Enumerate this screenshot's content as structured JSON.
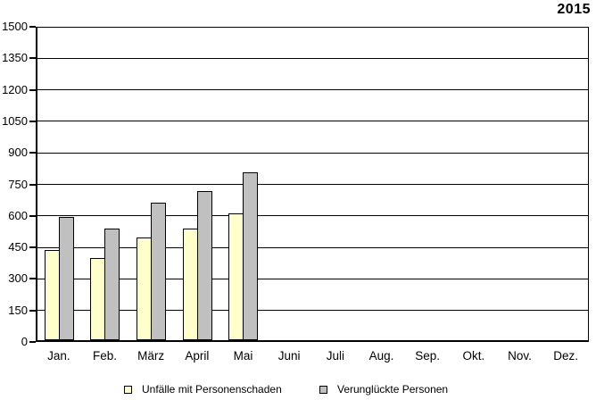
{
  "chart_data": {
    "type": "bar",
    "title": "2015",
    "categories": [
      "Jan.",
      "Feb.",
      "März",
      "April",
      "Mai",
      "Juni",
      "Juli",
      "Aug.",
      "Sep.",
      "Okt.",
      "Nov.",
      "Dez."
    ],
    "series": [
      {
        "name": "Unfälle mit Personenschaden",
        "color": "#FFFFCC",
        "values": [
          430,
          390,
          490,
          530,
          605,
          null,
          null,
          null,
          null,
          null,
          null,
          null
        ]
      },
      {
        "name": "Verunglückte Personen",
        "color": "#C0C0C0",
        "values": [
          585,
          530,
          655,
          710,
          800,
          null,
          null,
          null,
          null,
          null,
          null,
          null
        ]
      }
    ],
    "ylim": [
      0,
      1500
    ],
    "ytick_step": 150,
    "yticks": [
      0,
      150,
      300,
      450,
      600,
      750,
      900,
      1050,
      1200,
      1350,
      1500
    ],
    "xlabel": "",
    "ylabel": "",
    "grid": "horizontal",
    "legend_position": "bottom",
    "bar_border_color": "#000000",
    "axis_color": "#000000",
    "background_color": "#FFFFFF"
  }
}
